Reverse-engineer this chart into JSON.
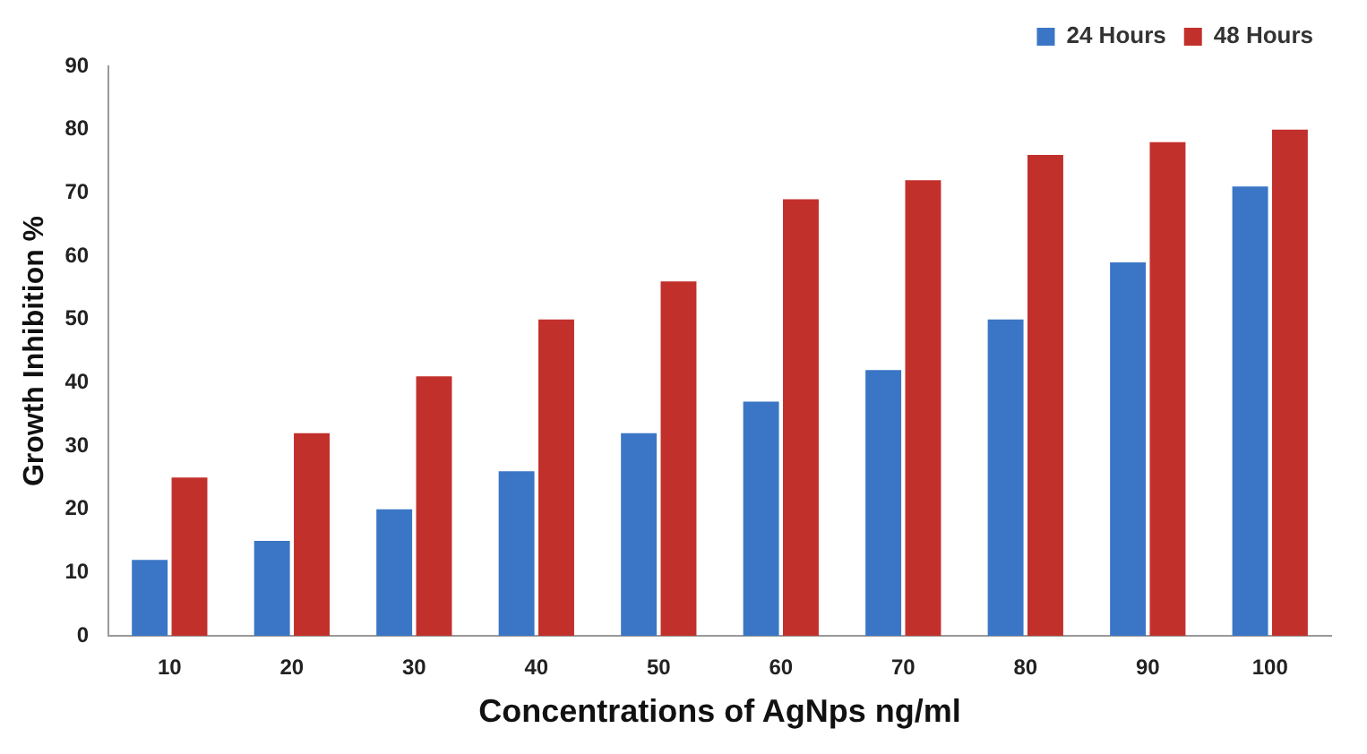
{
  "chart_data": {
    "type": "bar",
    "xlabel": "Concentrations of AgNps ng/ml",
    "ylabel": "Growth Inhibition %",
    "categories": [
      "10",
      "20",
      "30",
      "40",
      "50",
      "60",
      "70",
      "80",
      "90",
      "100"
    ],
    "series": [
      {
        "name": "24 Hours",
        "color": "#3b76c6",
        "values": [
          12,
          15,
          20,
          26,
          32,
          37,
          42,
          50,
          59,
          71
        ]
      },
      {
        "name": "48 Hours",
        "color": "#c2302c",
        "values": [
          25,
          32,
          41,
          50,
          56,
          69,
          72,
          76,
          78,
          80
        ]
      }
    ],
    "ylim": [
      0,
      90
    ],
    "yticks": [
      0,
      10,
      20,
      30,
      40,
      50,
      60,
      70,
      80,
      90
    ],
    "grid": false,
    "legend": "top right"
  }
}
